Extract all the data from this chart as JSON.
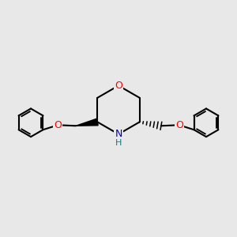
{
  "background_color": "#e8e8e8",
  "bond_color": "#000000",
  "O_color": "#ff0000",
  "N_color": "#0000bb",
  "H_color": "#008080",
  "line_width": 1.5,
  "figsize": [
    3.0,
    3.0
  ],
  "dpi": 100,
  "xlim": [
    -0.75,
    0.75
  ],
  "ylim": [
    -0.45,
    0.45
  ]
}
